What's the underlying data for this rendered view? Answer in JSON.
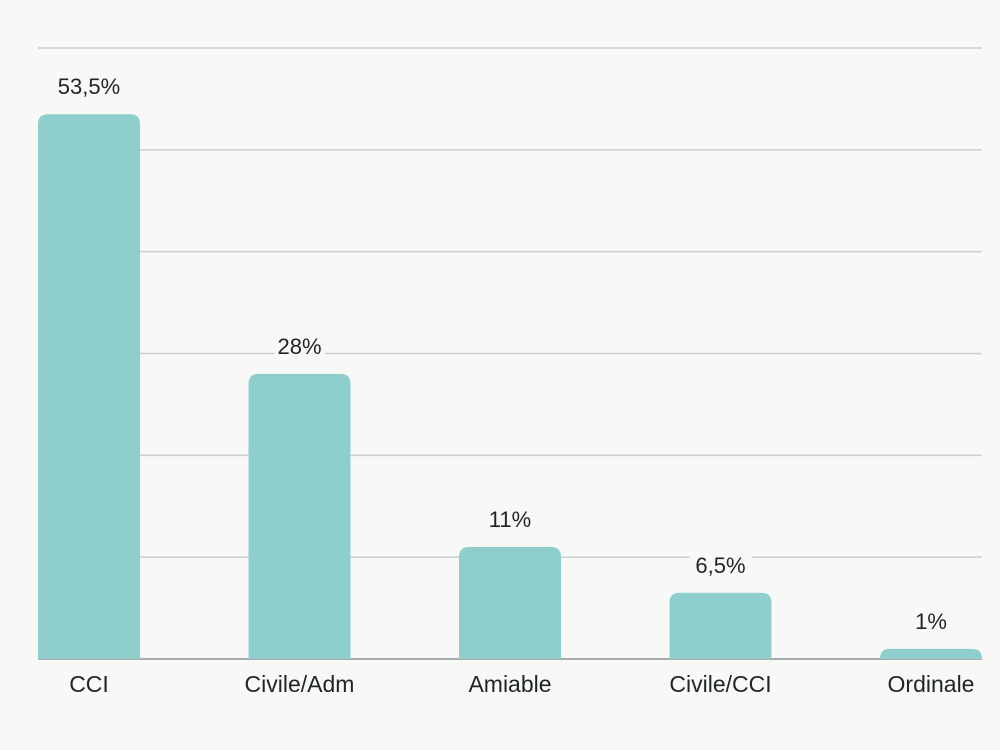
{
  "chart_data": {
    "type": "bar",
    "categories": [
      "CCI",
      "Civile/Adm",
      "Amiable",
      "Civile/CCI",
      "Ordinale"
    ],
    "values": [
      53.5,
      28,
      11,
      6.5,
      1
    ],
    "data_labels": [
      "53,5%",
      "28%",
      "11%",
      "6,5%",
      "1%"
    ],
    "ylim": [
      0,
      60
    ],
    "y_gridlines": [
      0,
      10,
      20,
      30,
      40,
      50,
      60
    ],
    "grid": true,
    "legend": "none",
    "title": "",
    "xlabel": "",
    "ylabel": "",
    "colors": {
      "bar": "#8ecfcd",
      "grid": "#c9ced0",
      "text": "#1f2428",
      "background": "#f8f8f6"
    }
  }
}
